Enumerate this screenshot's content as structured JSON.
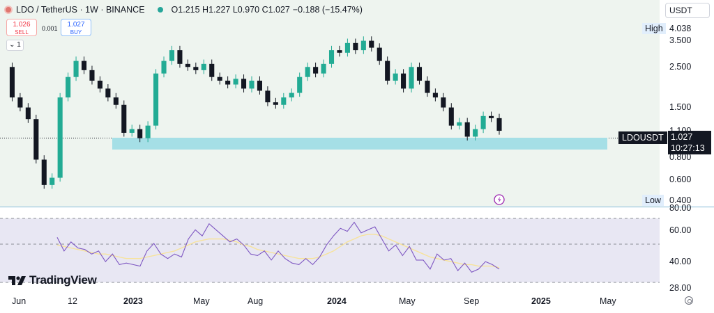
{
  "legend": {
    "symbol": "LDO / TetherUS · 1W · BINANCE",
    "open": "O1.215",
    "high": "H1.227",
    "low": "L0.970",
    "close": "C1.027",
    "change": "−0.188 (−15.47%)"
  },
  "trade": {
    "sell_price": "1.026",
    "sell_label": "SELL",
    "buy_price": "1.027",
    "buy_label": "BUY",
    "spread": "0.001",
    "collapse_label": "⌄ 1"
  },
  "currency": "USDT",
  "price_axis": {
    "high_label": "High",
    "high_value": "4.038",
    "low_label": "Low",
    "low_value": "0.400",
    "ticks": [
      "3.500",
      "2.500",
      "1.500",
      "1.100",
      "0.800",
      "0.600"
    ],
    "symbol_badge": "LDOUSDT",
    "last_price": "1.027",
    "countdown": "10:27:13"
  },
  "rsi_axis": {
    "ticks": [
      "80.00",
      "60.00",
      "40.00",
      "28.00"
    ]
  },
  "time_axis": {
    "labels": [
      "Jun",
      "12",
      "2023",
      "May",
      "Aug",
      "2024",
      "May",
      "Sep",
      "2025",
      "May"
    ]
  },
  "brand": "TradingView",
  "colors": {
    "up": "#22ab94",
    "down": "#131722",
    "zone": "#a5dfe6",
    "rsi_line": "#7e57c2",
    "rsi_ma": "#f7e39b",
    "rsi_band": "#e8e7f3",
    "chart_bg": "#eef4ef",
    "alert": "#9c27b0"
  },
  "chart_data": [
    {
      "type": "candlestick",
      "title": "LDO / TetherUS · 1W · BINANCE",
      "scale": "log",
      "ylim": [
        0.4,
        4.038
      ],
      "y_ticks": [
        3.5,
        2.5,
        1.5,
        1.1,
        0.8,
        0.6
      ],
      "x_ticks": [
        "Jun",
        "12",
        "2023",
        "May",
        "Aug",
        "2024",
        "May",
        "Sep",
        "2025",
        "May"
      ],
      "grid": false,
      "support_zone": [
        0.88,
        0.96
      ],
      "close_path": [
        [
          "2022-06",
          2.4
        ],
        [
          "2022-06",
          1.6
        ],
        [
          "2022-06",
          1.4
        ],
        [
          "2022-07",
          1.2
        ],
        [
          "2022-07",
          0.7
        ],
        [
          "2022-07",
          0.5
        ],
        [
          "2022-07",
          0.55
        ],
        [
          "2022-08",
          1.6
        ],
        [
          "2022-08",
          2.1
        ],
        [
          "2022-08",
          2.6
        ],
        [
          "2022-09",
          2.3
        ],
        [
          "2022-09",
          2.0
        ],
        [
          "2022-10",
          1.8
        ],
        [
          "2022-10",
          1.6
        ],
        [
          "2022-11",
          1.45
        ],
        [
          "2022-11",
          1.0
        ],
        [
          "2022-12",
          1.05
        ],
        [
          "2022-12",
          0.93
        ],
        [
          "2023-01",
          1.1
        ],
        [
          "2023-01",
          2.2
        ],
        [
          "2023-02",
          2.6
        ],
        [
          "2023-02",
          3.0
        ],
        [
          "2023-03",
          2.5
        ],
        [
          "2023-03",
          2.4
        ],
        [
          "2023-04",
          2.3
        ],
        [
          "2023-04",
          2.5
        ],
        [
          "2023-05",
          2.1
        ],
        [
          "2023-05",
          2.0
        ],
        [
          "2023-06",
          1.9
        ],
        [
          "2023-06",
          2.05
        ],
        [
          "2023-07",
          1.8
        ],
        [
          "2023-07",
          2.0
        ],
        [
          "2023-08",
          1.75
        ],
        [
          "2023-08",
          1.5
        ],
        [
          "2023-09",
          1.45
        ],
        [
          "2023-09",
          1.6
        ],
        [
          "2023-10",
          1.7
        ],
        [
          "2023-10",
          2.1
        ],
        [
          "2023-11",
          2.4
        ],
        [
          "2023-11",
          2.2
        ],
        [
          "2023-12",
          2.5
        ],
        [
          "2023-12",
          3.0
        ],
        [
          "2024-01",
          2.9
        ],
        [
          "2024-01",
          3.3
        ],
        [
          "2024-02",
          3.0
        ],
        [
          "2024-02",
          3.4
        ],
        [
          "2024-03",
          3.1
        ],
        [
          "2024-03",
          2.6
        ],
        [
          "2024-04",
          2.0
        ],
        [
          "2024-04",
          2.2
        ],
        [
          "2024-05",
          1.8
        ],
        [
          "2024-05",
          2.4
        ],
        [
          "2024-06",
          2.0
        ],
        [
          "2024-06",
          1.7
        ],
        [
          "2024-07",
          1.6
        ],
        [
          "2024-07",
          1.4
        ],
        [
          "2024-08",
          1.1
        ],
        [
          "2024-08",
          1.15
        ],
        [
          "2024-09",
          0.95
        ],
        [
          "2024-09",
          1.05
        ],
        [
          "2024-10",
          1.25
        ],
        [
          "2024-10",
          1.215
        ],
        [
          "2024-10",
          1.027
        ]
      ]
    },
    {
      "type": "line",
      "title": "",
      "ylim": [
        28,
        80
      ],
      "y_ticks": [
        80,
        60,
        40,
        28
      ],
      "guides": [
        73,
        55,
        32
      ],
      "series": [
        {
          "role": "rsi",
          "values": [
            61,
            52,
            58,
            54,
            53,
            50,
            52,
            45,
            50,
            43,
            44,
            43,
            42,
            52,
            57,
            50,
            47,
            50,
            48,
            60,
            66,
            62,
            70,
            66,
            62,
            58,
            60,
            56,
            50,
            49,
            52,
            46,
            52,
            47,
            44,
            43,
            47,
            43,
            48,
            56,
            62,
            67,
            65,
            71,
            64,
            66,
            68,
            60,
            52,
            56,
            49,
            55,
            46,
            46,
            40,
            50,
            46,
            47,
            39,
            44,
            38,
            40,
            45,
            43,
            40
          ]
        },
        {
          "role": "rsi_moving_average",
          "values": [
            56,
            55,
            54,
            53,
            52,
            51,
            50,
            50,
            49,
            48,
            47,
            47,
            47,
            48,
            49,
            50,
            51,
            52,
            54,
            56,
            58,
            59,
            60,
            60,
            60,
            59,
            58,
            56,
            55,
            53,
            52,
            51,
            50,
            49,
            48,
            47,
            47,
            47,
            48,
            50,
            52,
            55,
            58,
            60,
            62,
            63,
            63,
            62,
            60,
            58,
            56,
            54,
            52,
            50,
            48,
            47,
            46,
            45,
            44,
            43,
            43,
            42,
            42,
            42,
            41
          ]
        }
      ]
    }
  ]
}
